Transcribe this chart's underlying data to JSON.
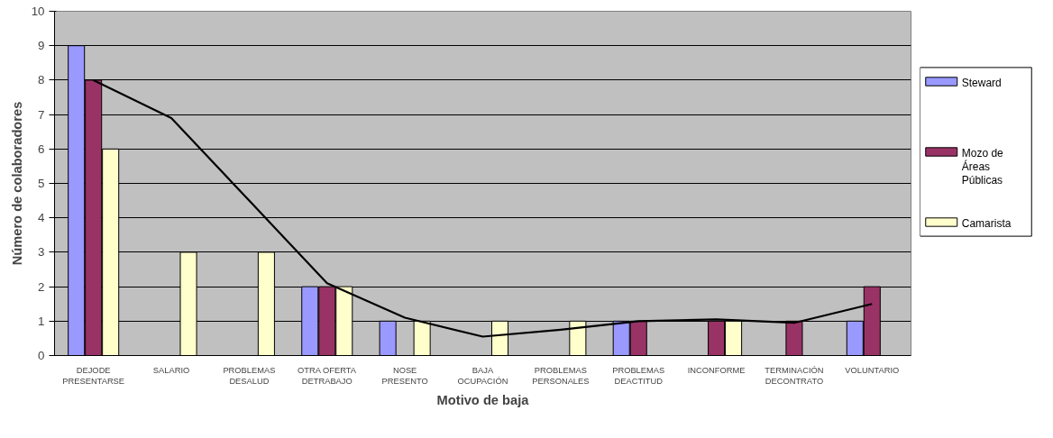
{
  "chart_data": {
    "type": "bar",
    "xlabel": "Motivo de baja",
    "ylabel": "Número de colaboradores",
    "categories": [
      "DEJODE\nPRESENTARSE",
      "SALARIO",
      "PROBLEMAS\nDESALUD",
      "OTRA OFERTA\nDETRABAJO",
      "NOSE\nPRESENTO",
      "BAJA\nOCUPACIÓN",
      "PROBLEMAS\nPERSONALES",
      "PROBLEMAS\nDEACTITUD",
      "INCONFORME",
      "TERMINACIÓN\nDECONTRATO",
      "VOLUNTARIO"
    ],
    "series": [
      {
        "name": "Steward",
        "color": "#9999ff",
        "values": [
          9,
          null,
          null,
          2,
          1,
          null,
          null,
          1,
          null,
          null,
          1
        ]
      },
      {
        "name": "Mozo de\nÁreas\nPúblicas",
        "color": "#993366",
        "values": [
          8,
          null,
          null,
          2,
          null,
          null,
          null,
          1,
          1,
          1,
          2
        ]
      },
      {
        "name": "Camarista",
        "color": "#ffffcc",
        "values": [
          6,
          3,
          3,
          2,
          1,
          1,
          1,
          null,
          1,
          null,
          null
        ]
      },
      {
        "type": "line",
        "color": "#000000",
        "values": [
          8.0,
          6.9,
          4.5,
          2.1,
          1.1,
          0.55,
          0.75,
          1.0,
          1.05,
          0.95,
          1.5
        ]
      }
    ],
    "ylim": [
      0,
      10
    ],
    "yticks": [
      0,
      1,
      2,
      3,
      4,
      5,
      6,
      7,
      8,
      9,
      10
    ],
    "grid": "y",
    "legend": "right"
  }
}
